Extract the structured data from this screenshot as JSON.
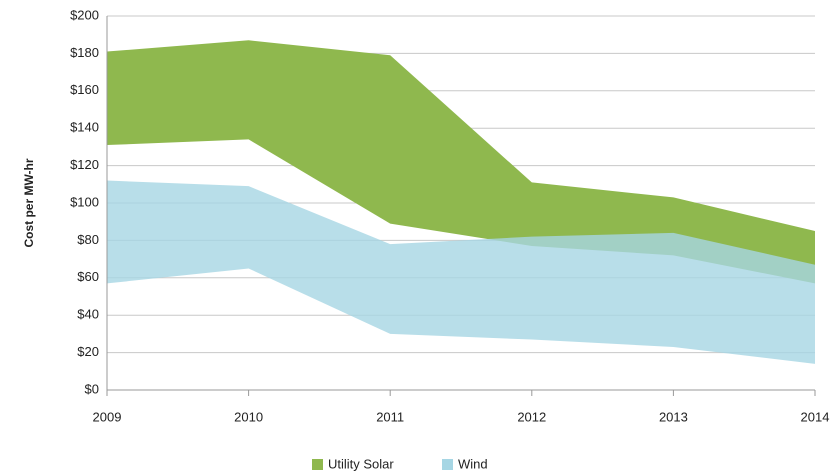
{
  "chart_data": {
    "type": "range-area",
    "y_label": "Cost per MW-hr",
    "x": [
      2009,
      2010,
      2011,
      2012,
      2013,
      2014
    ],
    "xlim": [
      2009,
      2014
    ],
    "xticks": [
      2009,
      2010,
      2011,
      2012,
      2013,
      2014
    ],
    "ylim": [
      0,
      200
    ],
    "yticks": [
      {
        "value": 0,
        "label": "$0"
      },
      {
        "value": 20,
        "label": "$20"
      },
      {
        "value": 40,
        "label": "$40"
      },
      {
        "value": 60,
        "label": "$60"
      },
      {
        "value": 80,
        "label": "$80"
      },
      {
        "value": 100,
        "label": "$100"
      },
      {
        "value": 120,
        "label": "$120"
      },
      {
        "value": 140,
        "label": "$140"
      },
      {
        "value": 160,
        "label": "$160"
      },
      {
        "value": 180,
        "label": "$180"
      },
      {
        "value": 200,
        "label": "$200"
      }
    ],
    "grid": true,
    "legend": "bottom",
    "series": [
      {
        "name": "Utility Solar",
        "color": "#8fb84e",
        "low": [
          131,
          134,
          89,
          77,
          72,
          57
        ],
        "high": [
          181,
          187,
          179,
          111,
          103,
          85
        ]
      },
      {
        "name": "Wind",
        "color": "#a6d6e4",
        "low": [
          57,
          65,
          30,
          27,
          23,
          14
        ],
        "high": [
          112,
          109,
          78,
          82,
          84,
          67
        ]
      }
    ]
  }
}
